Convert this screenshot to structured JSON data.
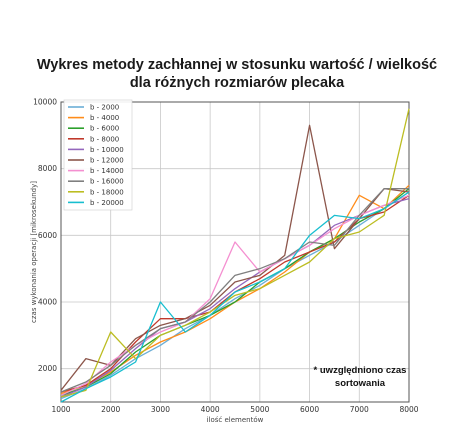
{
  "chart_data": {
    "type": "line",
    "title": "Wykres metody zachłannej w stosunku wartość / wielkość dla różnych rozmiarów plecaka",
    "title_lines": [
      "Wykres metody zachłannej w stosunku wartość / wielkość",
      "dla różnych rozmiarów plecaka"
    ],
    "xlabel": "ilość elementów",
    "ylabel": "czas wykonania operacji [mikrosekundy]",
    "xlim": [
      1000,
      8000
    ],
    "ylim": [
      1000,
      10000
    ],
    "xticks": [
      1000,
      2000,
      3000,
      4000,
      5000,
      6000,
      7000,
      8000
    ],
    "yticks": [
      2000,
      4000,
      6000,
      8000,
      10000
    ],
    "grid": true,
    "legend_position": "top-left",
    "annotation_lines": [
      "* uwzględniono czas",
      "sortowania"
    ],
    "x": [
      1000,
      1500,
      2000,
      2500,
      3000,
      3500,
      4000,
      4500,
      5000,
      5500,
      6000,
      6500,
      7000,
      7500,
      8000
    ],
    "series": [
      {
        "name": "b - 2000",
        "color": "#6baed6",
        "values": [
          1100,
          1400,
          1800,
          2300,
          2700,
          3200,
          3600,
          4100,
          4500,
          5000,
          5400,
          5800,
          6300,
          6800,
          7300
        ]
      },
      {
        "name": "b - 4000",
        "color": "#ff8c1a",
        "values": [
          1250,
          1500,
          1900,
          2400,
          2800,
          3100,
          3500,
          4000,
          4400,
          4900,
          5500,
          5900,
          7200,
          6800,
          7500
        ]
      },
      {
        "name": "b - 6000",
        "color": "#2ca02c",
        "values": [
          1200,
          1450,
          1850,
          2500,
          3000,
          3300,
          3600,
          4000,
          4600,
          5000,
          5500,
          5900,
          6400,
          6800,
          7400
        ]
      },
      {
        "name": "b - 8000",
        "color": "#c0392b",
        "values": [
          1300,
          1500,
          2000,
          2800,
          3500,
          3500,
          3700,
          4300,
          4700,
          5200,
          5500,
          5800,
          6500,
          6700,
          7200
        ]
      },
      {
        "name": "b - 10000",
        "color": "#9467bd",
        "values": [
          1150,
          1450,
          1950,
          2600,
          3200,
          3400,
          3800,
          4400,
          4900,
          5300,
          5700,
          6300,
          6600,
          6900,
          7100
        ]
      },
      {
        "name": "b - 12000",
        "color": "#8c564b",
        "values": [
          1350,
          2300,
          2100,
          2900,
          3300,
          3500,
          3900,
          4600,
          4800,
          5400,
          9300,
          5600,
          6500,
          7400,
          7300
        ]
      },
      {
        "name": "b - 14000",
        "color": "#f48fd0",
        "values": [
          1200,
          1550,
          2200,
          2700,
          3100,
          3400,
          4100,
          5800,
          4900,
          5300,
          5700,
          6200,
          6600,
          6900,
          7200
        ]
      },
      {
        "name": "b - 16000",
        "color": "#7f7f7f",
        "values": [
          1300,
          1600,
          2100,
          2700,
          3200,
          3400,
          4000,
          4800,
          5000,
          5300,
          5800,
          5700,
          6600,
          7400,
          7400
        ]
      },
      {
        "name": "b - 18000",
        "color": "#bcbd22",
        "values": [
          1150,
          1350,
          3100,
          2300,
          3000,
          3300,
          3700,
          4200,
          4400,
          4800,
          5200,
          5900,
          6100,
          6600,
          9800
        ]
      },
      {
        "name": "b - 20000",
        "color": "#17becf",
        "values": [
          1000,
          1400,
          1750,
          2200,
          4000,
          3100,
          3600,
          4300,
          4600,
          5000,
          6000,
          6600,
          6500,
          6800,
          7300
        ]
      }
    ]
  }
}
